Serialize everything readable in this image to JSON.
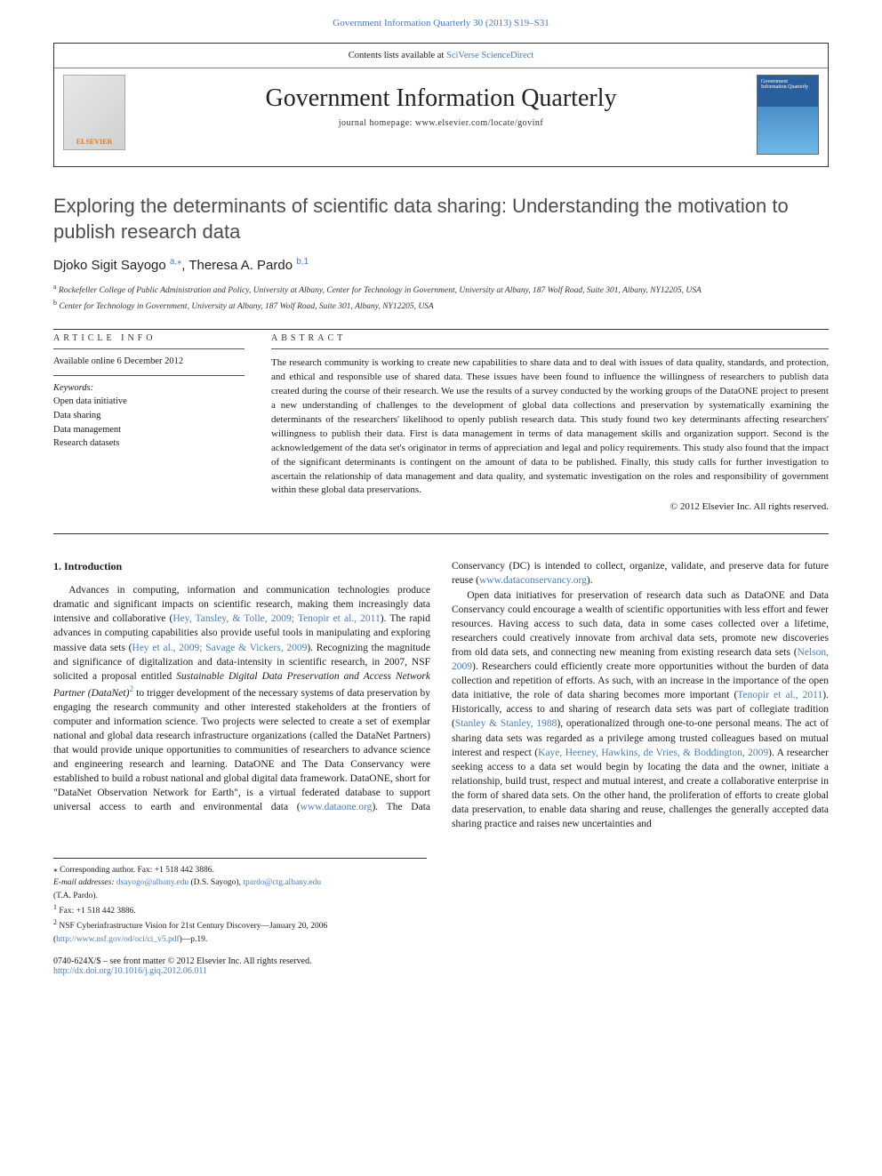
{
  "topLink": "Government Information Quarterly 30 (2013) S19–S31",
  "headerTop": {
    "pre": "Contents lists available at ",
    "link": "SciVerse ScienceDirect"
  },
  "journalName": "Government Information Quarterly",
  "journalHomepage": "journal homepage: www.elsevier.com/locate/govinf",
  "elsevierLabel": "ELSEVIER",
  "coverLabel": "Government Information Quarterly",
  "title": "Exploring the determinants of scientific data sharing: Understanding the motivation to publish research data",
  "authors": {
    "a1": "Djoko Sigit Sayogo ",
    "a1sup": "a,",
    "star": "⁎",
    "sep": ", ",
    "a2": "Theresa A. Pardo ",
    "a2sup": "b,1"
  },
  "affiliations": {
    "a": "Rockefeller College of Public Administration and Policy, University at Albany, Center for Technology in Government, University at Albany, 187 Wolf Road, Suite 301, Albany, NY12205, USA",
    "b": "Center for Technology in Government, University at Albany, 187 Wolf Road, Suite 301, Albany, NY12205, USA"
  },
  "infoLabel": "article info",
  "abstractLabel": "abstract",
  "history": "Available online 6 December 2012",
  "kwLabel": "Keywords:",
  "keywords": [
    "Open data initiative",
    "Data sharing",
    "Data management",
    "Research datasets"
  ],
  "abstract": "The research community is working to create new capabilities to share data and to deal with issues of data quality, standards, and protection, and ethical and responsible use of shared data. These issues have been found to influence the willingness of researchers to publish data created during the course of their research. We use the results of a survey conducted by the working groups of the DataONE project to present a new understanding of challenges to the development of global data collections and preservation by systematically examining the determinants of the researchers' likelihood to openly publish research data. This study found two key determinants affecting researchers' willingness to publish their data. First is data management in terms of data management skills and organization support. Second is the acknowledgement of the data set's originator in terms of appreciation and legal and policy requirements. This study also found that the impact of the significant determinants is contingent on the amount of data to be published. Finally, this study calls for further investigation to ascertain the relationship of data management and data quality, and systematic investigation on the roles and responsibility of government within these global data preservations.",
  "copyright": "© 2012 Elsevier Inc. All rights reserved.",
  "introHeading": "1. Introduction",
  "introPara1": {
    "pre": "Advances in computing, information and communication technologies produce dramatic and significant impacts on scientific research, making them increasingly data intensive and collaborative (",
    "c1": "Hey, Tansley, & Tolle, 2009; Tenopir et al., 2011",
    "t2": "). The rapid advances in computing capabilities also provide useful tools in manipulating and exploring massive data sets (",
    "c2": "Hey et al., 2009; Savage & Vickers, 2009",
    "t3": "). Recognizing the magnitude and significance of digitalization and data-intensity in scientific research, in 2007, NSF solicited a proposal entitled ",
    "em": "Sustainable Digital Data Preservation and Access Network Partner (DataNet)",
    "sup": "2",
    "t4": " to trigger development of the necessary systems of data preservation by engaging the research community and other interested stakeholders at the frontiers of computer and information science. Two projects were selected to create a set of exemplar national and global data research infrastructure organizations (called the DataNet Partners) that would provide unique opportunities to communities of researchers to advance science and engineering research and learning. DataONE and The Data Conservancy were established to build a robust national and global digital data framework. DataONE, short for \"DataNet Observation Network for Earth\", is a virtual federated database to support universal access to earth and environmental data (",
    "c3": "www.dataone.org",
    "t5": "). The Data Conservancy (DC) is intended to collect, organize, validate, and preserve data for future reuse (",
    "c4": "www.dataconservancy.org",
    "t6": ")."
  },
  "introPara2": {
    "pre": "Open data initiatives for preservation of research data such as DataONE and Data Conservancy could encourage a wealth of scientific opportunities with less effort and fewer resources. Having access to such data, data in some cases collected over a lifetime, researchers could creatively innovate from archival data sets, promote new discoveries from old data sets, and connecting new meaning from existing research data sets (",
    "c1": "Nelson, 2009",
    "t2": "). Researchers could efficiently create more opportunities without the burden of data collection and repetition of efforts. As such, with an increase in the importance of the open data initiative, the role of data sharing becomes more important (",
    "c2": "Tenopir et al., 2011",
    "t3": "). Historically, access to and sharing of research data sets was part of collegiate tradition (",
    "c3": "Stanley & Stanley, 1988",
    "t4": "), operationalized through one-to-one personal means. The act of sharing data sets was regarded as a privilege among trusted colleagues based on mutual interest and respect (",
    "c4": "Kaye, Heeney, Hawkins, de Vries, & Boddington, 2009",
    "t5": "). A researcher seeking access to a data set would begin by locating the data and the owner, initiate a relationship, build trust, respect and mutual interest, and create a collaborative enterprise in the form of shared data sets. On the other hand, the proliferation of efforts to create global data preservation, to enable data sharing and reuse, challenges the generally accepted data sharing practice and raises new uncertainties and"
  },
  "footnotes": {
    "corr": "⁎ Corresponding author. Fax: +1 518 442 3886.",
    "emailLabel": "E-mail addresses: ",
    "email1": "dsayogo@albany.edu",
    "e1paren": " (D.S. Sayogo), ",
    "email2": "tpardo@ctg.albany.edu",
    "e2paren": " (T.A. Pardo).",
    "fn1": "Fax: +1 518 442 3886.",
    "fn2pre": "NSF Cyberinfrastructure Vision for 21st Century Discovery—January 20, 2006 (",
    "fn2link": "http://www.nsf.gov/od/oci/ci_v5.pdf",
    "fn2post": ")—p.19."
  },
  "frontMatter": "0740-624X/$ – see front matter © 2012 Elsevier Inc. All rights reserved.",
  "doi": "http://dx.doi.org/10.1016/j.giq.2012.06.011"
}
